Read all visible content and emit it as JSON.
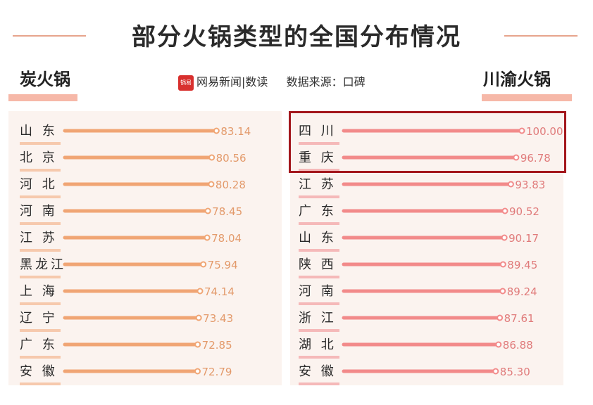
{
  "page": {
    "title": "部分火锅类型的全国分布情况",
    "source_logo": "锅易",
    "source_brand": "网易新闻|数读",
    "source_text": "数据来源：口碑"
  },
  "chart_data": [
    {
      "type": "bar",
      "title": "炭火锅",
      "categories": [
        "山 东",
        "北 京",
        "河 北",
        "河 南",
        "江 苏",
        "黑龙江",
        "上 海",
        "辽 宁",
        "广 东",
        "安 徽"
      ],
      "values": [
        83.14,
        80.56,
        80.28,
        78.45,
        78.04,
        75.94,
        74.14,
        73.43,
        72.85,
        72.79
      ],
      "value_labels": [
        "83.14",
        "80.56",
        "80.28",
        "78.45",
        "78.04",
        "75.94",
        "74.14",
        "73.43",
        "72.85",
        "72.79"
      ],
      "orientation": "horizontal",
      "color": "#f0a574"
    },
    {
      "type": "bar",
      "title": "川渝火锅",
      "categories": [
        "四 川",
        "重 庆",
        "江 苏",
        "广 东",
        "山 东",
        "陕 西",
        "河 南",
        "浙 江",
        "湖 北",
        "安 徽"
      ],
      "values": [
        100.0,
        96.78,
        93.83,
        90.52,
        90.17,
        89.45,
        89.24,
        87.61,
        86.88,
        85.3
      ],
      "value_labels": [
        "100.00",
        "96.78",
        "93.83",
        "90.52",
        "90.17",
        "89.45",
        "89.24",
        "87.61",
        "86.88",
        "85.30"
      ],
      "orientation": "horizontal",
      "color": "#f28a8a",
      "highlighted": [
        "四 川",
        "重 庆"
      ]
    }
  ]
}
